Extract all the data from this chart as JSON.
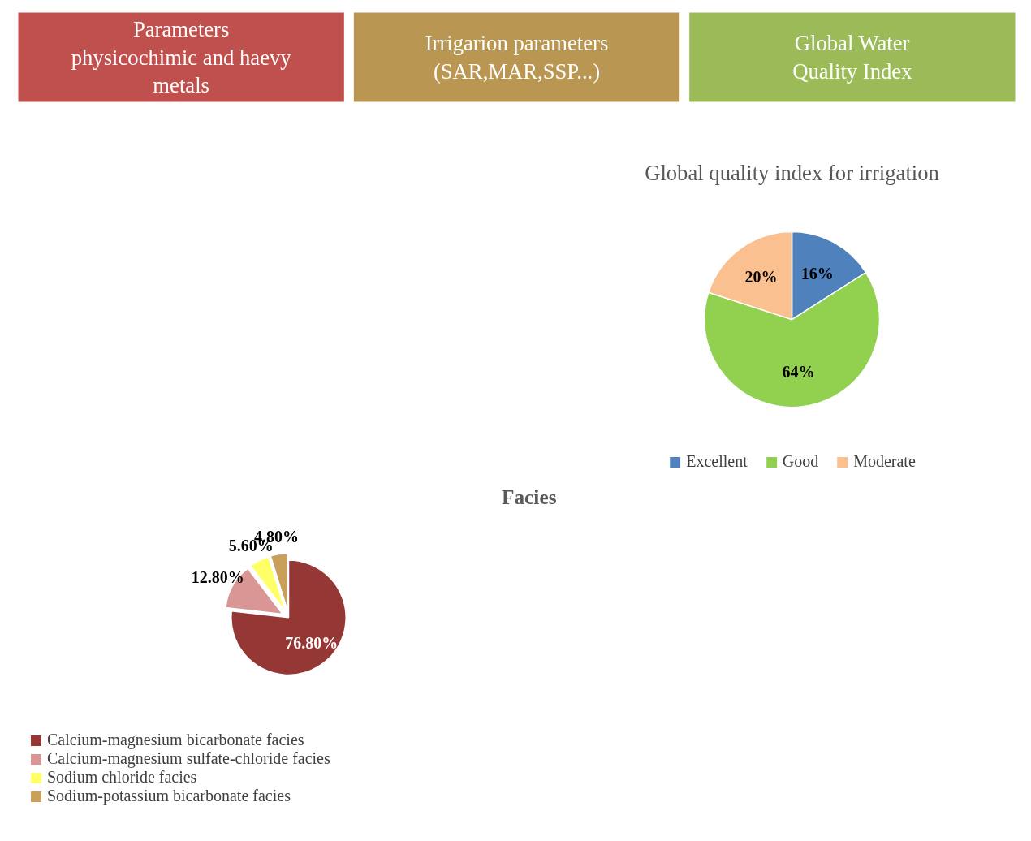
{
  "chart_data": [
    {
      "type": "other",
      "annotations": [
        "Parameters\nphysicochimic and haevy\nmetals",
        "Irrigarion parameters\n(SAR,MAR,SSP...)",
        "Global Water\nQuality Index"
      ],
      "colors": [
        "#c0504d",
        "#b99752",
        "#9bbb59"
      ]
    },
    {
      "type": "pie",
      "title": "Global quality index for irrigation",
      "categories": [
        "Excellent",
        "Good",
        "Moderate"
      ],
      "values": [
        16,
        64,
        20
      ],
      "colors": [
        "#4f81bd",
        "#92d050",
        "#fac090"
      ],
      "value_labels": [
        "16%",
        "64%",
        "20%"
      ],
      "legend": "bottom"
    },
    {
      "type": "pie",
      "title": "Facies",
      "categories": [
        "Calcium-magnesium bicarbonate facies",
        "Calcium-magnesium sulfate-chloride facies",
        "Sodium chloride facies",
        "Sodium-potassium bicarbonate facies"
      ],
      "values": [
        76.8,
        12.8,
        5.6,
        4.8
      ],
      "colors": [
        "#953735",
        "#d99694",
        "#ffff66",
        "#c8a05a"
      ],
      "value_labels": [
        "76.80%",
        "12.80%",
        "5.60%",
        "4.80%"
      ],
      "legend": "bottom left"
    }
  ]
}
